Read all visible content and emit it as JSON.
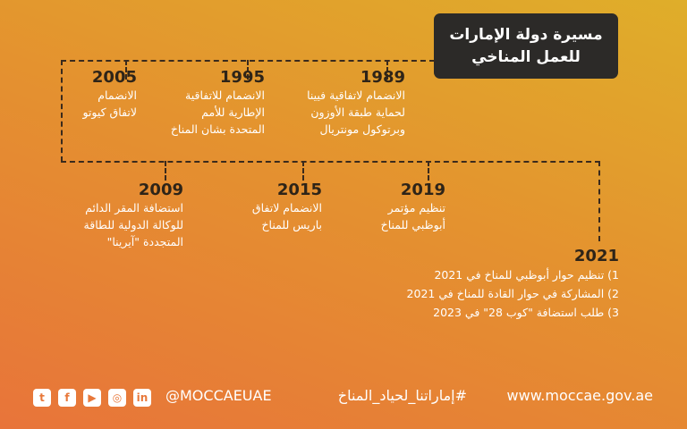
{
  "title": {
    "line1": "مسيرة دولة الإمارات",
    "line2": "للعمل المناخي"
  },
  "milestones_top": [
    {
      "year": "2005",
      "lines": [
        "الانضمام",
        "لاتفاق كيوتو"
      ]
    },
    {
      "year": "1995",
      "lines": [
        "الانضمام للاتفاقية",
        "الإطارية للأمم",
        "المتحدة بشان المناخ"
      ]
    },
    {
      "year": "1989",
      "lines": [
        "الانضمام لاتفاقية فيينا",
        "لحماية طبقة الأوزون",
        "وبرتوكول مونتريال"
      ]
    }
  ],
  "milestones_bottom": [
    {
      "year": "2009",
      "lines": [
        "استضافة المقر الدائم",
        "للوكالة الدولية للطاقة",
        "المتجددة \"آيرينا\""
      ]
    },
    {
      "year": "2015",
      "lines": [
        "الانضمام لاتفاق",
        "باريس للمناخ"
      ]
    },
    {
      "year": "2019",
      "lines": [
        "تنظيم مؤتمر",
        "أبوظبي للمناخ"
      ]
    }
  ],
  "milestone_2021": {
    "year": "2021",
    "items": [
      "1) تنظيم حوار أبوظبي للمناخ في 2021",
      "2) المشاركة في حوار القادة للمناخ في 2021",
      "3) طلب استضافة \"كوب 28\" في 2023"
    ]
  },
  "footer": {
    "website": "www.moccae.gov.ae",
    "hashtag": "#إماراتنا_لحياد_المناخ",
    "handle": "@MOCCAEUAE",
    "social_icons": [
      {
        "name": "twitter-icon",
        "glyph": "t"
      },
      {
        "name": "facebook-icon",
        "glyph": "f"
      },
      {
        "name": "youtube-icon",
        "glyph": "▶"
      },
      {
        "name": "instagram-icon",
        "glyph": "◎"
      },
      {
        "name": "linkedin-icon",
        "glyph": "in"
      }
    ]
  }
}
